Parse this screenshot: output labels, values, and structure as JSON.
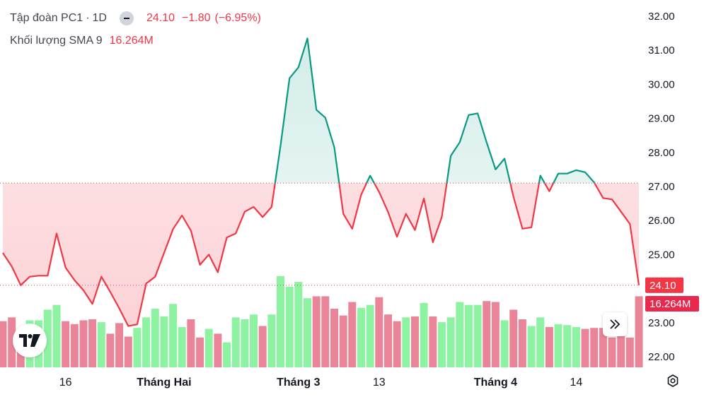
{
  "legend": {
    "symbol": "Tập đoàn PC1",
    "separator": "·",
    "interval": "1D",
    "price": "24.10",
    "change": "−1.80",
    "change_pct": "(−6.95%)",
    "volume_label": "Khối lượng SMA 9",
    "volume_value": "16.264M"
  },
  "colors": {
    "up_line": "#089981",
    "down_line": "#f23645",
    "up_fill": "#089981",
    "down_fill": "#f23645",
    "volume_up": "#8ef2a3",
    "volume_down": "#ea8599",
    "price_badge": "#f23645",
    "volume_badge": "#e6294c",
    "axis_text": "#131722"
  },
  "icons": {
    "collapse": "minus-circle-icon",
    "logo": "tradingview-logo",
    "goto_realtime": "double-chevron-right-icon",
    "settings": "gear-icon"
  },
  "chart_data": {
    "type": "line",
    "title": "Tập đoàn PC1 · 1D",
    "series": [
      {
        "name": "Tập đoàn PC1",
        "values": [
          25.05,
          24.65,
          24.1,
          24.35,
          24.38,
          24.38,
          25.62,
          24.62,
          24.25,
          23.95,
          23.55,
          24.35,
          23.9,
          23.42,
          22.9,
          22.95,
          24.15,
          24.35,
          25.05,
          25.75,
          26.15,
          25.7,
          24.7,
          25.0,
          24.48,
          25.5,
          25.62,
          26.26,
          26.4,
          26.1,
          26.4,
          28.2,
          30.18,
          30.5,
          31.35,
          29.25,
          29.02,
          28.15,
          26.2,
          25.76,
          26.76,
          27.32,
          26.84,
          26.25,
          25.52,
          26.2,
          25.72,
          26.65,
          25.36,
          26.1,
          27.9,
          28.3,
          29.1,
          29.15,
          28.3,
          27.5,
          27.82,
          26.7,
          25.76,
          25.8,
          27.32,
          26.86,
          27.38,
          27.38,
          27.48,
          27.42,
          27.12,
          26.66,
          26.62,
          26.26,
          25.9,
          24.1
        ]
      },
      {
        "name": "Khối lượng",
        "values": [
          4.8,
          5.2,
          4.0,
          4.9,
          4.9,
          6.0,
          6.5,
          4.8,
          4.5,
          4.9,
          5.0,
          4.7,
          3.5,
          4.6,
          3.2,
          4.1,
          5.2,
          6.1,
          5.3,
          6.6,
          4.2,
          5.0,
          3.1,
          4.0,
          3.5,
          2.6,
          5.2,
          5.0,
          5.5,
          4.3,
          5.5,
          9.5,
          8.4,
          8.9,
          7.2,
          7.4,
          7.4,
          6.1,
          5.4,
          6.8,
          6.2,
          6.5,
          7.3,
          5.5,
          4.8,
          5.2,
          5.3,
          6.7,
          5.3,
          4.7,
          5.2,
          6.8,
          6.5,
          6.5,
          6.9,
          6.8,
          4.9,
          6.0,
          5.0,
          4.3,
          5.2,
          4.2,
          4.5,
          4.4,
          4.2,
          4.0,
          4.1,
          4.1,
          3.1,
          3.5,
          3.1,
          7.4
        ]
      }
    ],
    "baseline": 27.1,
    "last_price": 24.1,
    "last_volume_label": "16.264M",
    "ylim": [
      21.5,
      32.25
    ],
    "y_ticks": [
      32.0,
      31.0,
      30.0,
      29.0,
      28.0,
      27.0,
      26.0,
      25.0,
      23.0,
      22.0
    ],
    "y_tick_labels": [
      "32.00",
      "31.00",
      "30.00",
      "29.00",
      "28.00",
      "27.00",
      "26.00",
      "25.00",
      "23.00",
      "22.00"
    ],
    "x_labels": [
      {
        "index": 7,
        "label": "16",
        "bold": false
      },
      {
        "index": 18,
        "label": "Tháng Hai",
        "bold": true
      },
      {
        "index": 33,
        "label": "Tháng 3",
        "bold": true
      },
      {
        "index": 42,
        "label": "13",
        "bold": false
      },
      {
        "index": 55,
        "label": "Tháng 4",
        "bold": true
      },
      {
        "index": 64,
        "label": "14",
        "bold": false
      }
    ],
    "xlabel": "",
    "ylabel": "",
    "grid": false,
    "legend_position": "top-left"
  }
}
